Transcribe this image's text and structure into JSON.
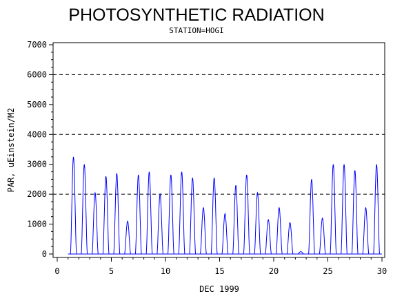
{
  "chart_data": {
    "type": "line",
    "title": "PHOTOSYNTHETIC RADIATION",
    "subtitle": "STATION=HOGI",
    "xlabel": "DEC 1999",
    "ylabel": "PAR, uEinstein/M2",
    "xlim": [
      0,
      30
    ],
    "ylim": [
      0,
      7000
    ],
    "x_ticks": [
      "0",
      "5",
      "10",
      "15",
      "20",
      "25",
      "30"
    ],
    "y_ticks": [
      "0",
      "1000",
      "2000",
      "3000",
      "4000",
      "5000",
      "6000",
      "7000"
    ],
    "reference_lines": [
      2000,
      4000,
      6000
    ],
    "series_color": "#0000ff",
    "series": [
      {
        "daily_peaks": [
          {
            "day": 1,
            "peak": 3250
          },
          {
            "day": 2,
            "peak": 3000
          },
          {
            "day": 3,
            "peak": 2050
          },
          {
            "day": 4,
            "peak": 2600
          },
          {
            "day": 5,
            "peak": 2700
          },
          {
            "day": 6,
            "peak": 1100
          },
          {
            "day": 7,
            "peak": 2650
          },
          {
            "day": 8,
            "peak": 2750
          },
          {
            "day": 9,
            "peak": 2000
          },
          {
            "day": 10,
            "peak": 2650
          },
          {
            "day": 11,
            "peak": 2750
          },
          {
            "day": 12,
            "peak": 2550
          },
          {
            "day": 13,
            "peak": 1550
          },
          {
            "day": 14,
            "peak": 2550
          },
          {
            "day": 15,
            "peak": 1350
          },
          {
            "day": 16,
            "peak": 2300
          },
          {
            "day": 17,
            "peak": 2650
          },
          {
            "day": 18,
            "peak": 2050
          },
          {
            "day": 19,
            "peak": 1150
          },
          {
            "day": 20,
            "peak": 1550
          },
          {
            "day": 21,
            "peak": 1050
          },
          {
            "day": 22,
            "peak": 80
          },
          {
            "day": 23,
            "peak": 2500
          },
          {
            "day": 24,
            "peak": 1200
          },
          {
            "day": 25,
            "peak": 3000
          },
          {
            "day": 26,
            "peak": 3000
          },
          {
            "day": 27,
            "peak": 2800
          },
          {
            "day": 28,
            "peak": 1550
          },
          {
            "day": 29,
            "peak": 3000
          }
        ]
      }
    ]
  }
}
